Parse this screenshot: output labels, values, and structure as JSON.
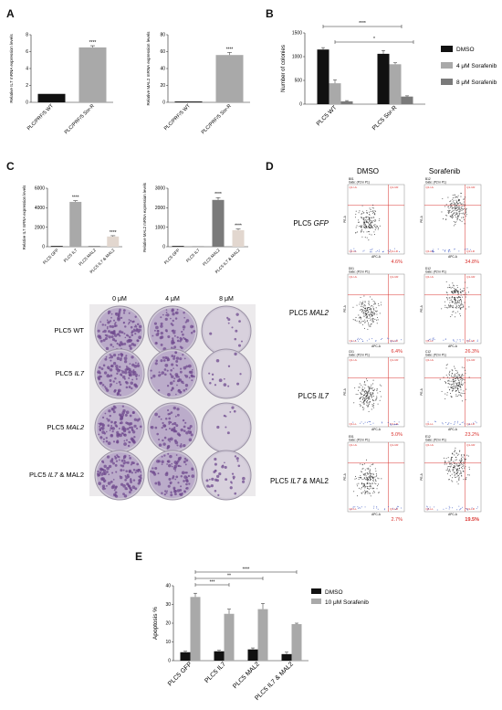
{
  "panels": {
    "A": "A",
    "B": "B",
    "C": "C",
    "D": "D",
    "E": "E"
  },
  "colors": {
    "black": "#111111",
    "lightgray": "#a9a9a9",
    "darkgray": "#7a7a7a",
    "red": "#d9302c",
    "plate_purple": "#6f4a8e",
    "plate_bg": "#cfc8d6"
  },
  "chart_data": [
    {
      "id": "A1",
      "type": "bar",
      "categories": [
        "PLC/PRF/5 WT",
        "PLC/PRF/5 Sor-R"
      ],
      "values": [
        1.0,
        6.5
      ],
      "errors": [
        0,
        0.2
      ],
      "ylabel": "Relative IL7 mRNA expression levels",
      "ylim": [
        0,
        8
      ],
      "yticks": [
        0,
        2,
        4,
        6,
        8
      ],
      "stars": [
        "",
        "****"
      ],
      "colors": [
        "#111111",
        "#a9a9a9"
      ]
    },
    {
      "id": "A2",
      "type": "bar",
      "categories": [
        "PLC/PRF/5 WT",
        "PLC/PRF/5 Sor-R"
      ],
      "values": [
        1.0,
        56
      ],
      "errors": [
        0,
        3
      ],
      "ylabel": "Relative MAL2 mRNA expression levels",
      "ylim": [
        0,
        80
      ],
      "yticks": [
        0,
        20,
        40,
        60,
        80
      ],
      "stars": [
        "",
        "****"
      ],
      "colors": [
        "#111111",
        "#a9a9a9"
      ]
    },
    {
      "id": "B",
      "type": "bar",
      "categories": [
        "PLC5 WT",
        "PLC5 Sor-R"
      ],
      "series": [
        {
          "name": "DMSO",
          "values": [
            1150,
            1060
          ],
          "errors": [
            40,
            70
          ],
          "color": "#111111"
        },
        {
          "name": "4 μM Sorafenib",
          "values": [
            440,
            840
          ],
          "errors": [
            70,
            30
          ],
          "color": "#a9a9a9"
        },
        {
          "name": "8 μM Sorafenib",
          "values": [
            60,
            160
          ],
          "errors": [
            15,
            15
          ],
          "color": "#7a7a7a"
        }
      ],
      "ylabel": "Number of colonies",
      "ylim": [
        0,
        1500
      ],
      "yticks": [
        0,
        500,
        1000,
        1500
      ],
      "sig": [
        "****",
        "*"
      ]
    },
    {
      "id": "C1",
      "type": "bar",
      "categories": [
        "PLC5 GFP",
        "PLC5 IL7",
        "PLC5 MAL2",
        "PLC5 IL7 & MAL2"
      ],
      "values": [
        1,
        4600,
        1,
        1050
      ],
      "errors": [
        0,
        120,
        0,
        80
      ],
      "ylabel": "Relative IL7 mRNA expression levels",
      "ylim": [
        0,
        6000
      ],
      "yticks": [
        0,
        2000,
        4000,
        6000
      ],
      "stars": [
        "",
        "****",
        "",
        "****"
      ],
      "colors": [
        "#111111",
        "#a9a9a9",
        "#7a7a7a",
        "#e2d7cf"
      ]
    },
    {
      "id": "C2",
      "type": "bar",
      "categories": [
        "PLC5 GFP",
        "PLC5 IL7",
        "PLC5 MAL2",
        "PLC5 IL7 & MAL2"
      ],
      "values": [
        1,
        1,
        2400,
        850
      ],
      "errors": [
        0,
        0,
        120,
        60
      ],
      "ylabel": "Relative MAL2 mRNA expression levels",
      "ylim": [
        0,
        3000
      ],
      "yticks": [
        0,
        1000,
        2000,
        3000
      ],
      "stars": [
        "",
        "",
        "****",
        "****"
      ],
      "colors": [
        "#111111",
        "#a9a9a9",
        "#7a7a7a",
        "#e2d7cf"
      ]
    },
    {
      "id": "E",
      "type": "bar",
      "categories": [
        "PLC5 GFP",
        "PLC5 IL7",
        "PLC5 MAL2",
        "PLC5 IL7 & MAL2"
      ],
      "series": [
        {
          "name": "DMSO",
          "values": [
            4.5,
            5.0,
            6.0,
            3.5
          ],
          "errors": [
            0.5,
            0.5,
            0.8,
            1.0
          ],
          "color": "#111111"
        },
        {
          "name": "10 μM Sorafenib",
          "values": [
            34,
            25,
            27.5,
            19.5
          ],
          "errors": [
            2,
            2.5,
            3,
            0.5
          ],
          "color": "#a9a9a9"
        }
      ],
      "ylabel": "Apoptosis %",
      "ylim": [
        0,
        40
      ],
      "yticks": [
        0,
        10,
        20,
        30,
        40
      ],
      "sig": [
        "****",
        "**",
        "***"
      ]
    }
  ],
  "plates": {
    "columns": [
      "0 μM",
      "4 μM",
      "8 μM"
    ],
    "rows": [
      {
        "prefix": "PLC5 ",
        "italic": "",
        "suffix": "WT",
        "density": [
          0.85,
          0.55,
          0.08
        ]
      },
      {
        "prefix": "PLC5 ",
        "italic": "IL7",
        "suffix": "",
        "density": [
          0.8,
          0.6,
          0.1
        ]
      },
      {
        "prefix": "PLC5 ",
        "italic": "MAL2",
        "suffix": "",
        "density": [
          0.82,
          0.5,
          0.06
        ]
      },
      {
        "prefix": "PLC5 ",
        "italic": "IL7",
        "suffix": " & MAL2",
        "density": [
          0.9,
          0.65,
          0.25
        ]
      }
    ]
  },
  "flow": {
    "columns": [
      "DMSO",
      "Sorafenib"
    ],
    "rows": [
      {
        "prefix": "PLC5 ",
        "italic": "GFP",
        "suffix": "",
        "wells": [
          "B01",
          "B12"
        ],
        "pcts": [
          "4.6%",
          "34.8%"
        ]
      },
      {
        "prefix": "PLC5 ",
        "italic": "MAL2",
        "suffix": "",
        "wells": [
          "D01",
          "D12"
        ],
        "pcts": [
          "6.4%",
          "26.3%"
        ]
      },
      {
        "prefix": "PLC5 ",
        "italic": "IL7",
        "suffix": "",
        "wells": [
          "C01",
          "C12"
        ],
        "pcts": [
          "5.0%",
          "23.2%"
        ]
      },
      {
        "prefix": "PLC5 ",
        "italic": "IL7",
        "suffix": " & MAL2",
        "wells": [
          "E01",
          "E12"
        ],
        "pcts": [
          "2.7%",
          "19.5%"
        ]
      }
    ],
    "gate": "Gate: (P2 in P1)",
    "xaxis": "APC-A",
    "yaxis": "PE-A"
  }
}
